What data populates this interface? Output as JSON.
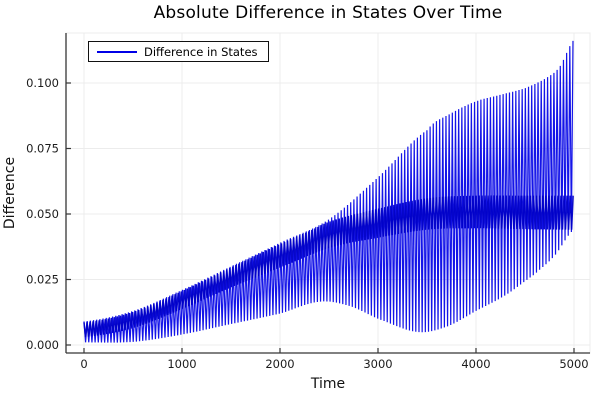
{
  "title": "Absolute Difference in States Over Time",
  "legend": {
    "label": "Difference in States",
    "position": "top-left"
  },
  "axes": {
    "x_label": "Time",
    "y_label": "Difference",
    "x_tick_labels": [
      "0",
      "1000",
      "2000",
      "3000",
      "4000",
      "5000"
    ],
    "y_tick_labels": [
      "0.000",
      "0.025",
      "0.050",
      "0.075",
      "0.100"
    ]
  },
  "colors": {
    "series_blue": "#1414e8",
    "series_core_blue": "#0000c8",
    "legend_sample_blue": "#0000e6",
    "grid": "#ececec",
    "spine": "#363636",
    "tick_text": "#1c1c1c",
    "background": "#ffffff"
  },
  "chart_data": {
    "type": "line",
    "title": "Absolute Difference in States Over Time",
    "xlabel": "Time",
    "ylabel": "Difference",
    "xlim": [
      0,
      5000
    ],
    "ylim": [
      0.0,
      0.118
    ],
    "x_ticks": [
      0,
      1000,
      2000,
      3000,
      4000,
      5000
    ],
    "y_ticks": [
      0.0,
      0.025,
      0.05,
      0.075,
      0.1
    ],
    "grid": true,
    "legend_position": "top-left",
    "series": [
      {
        "name": "Difference in States",
        "color": "#1414e8",
        "waveform": "fast oscillation filling the region between slowly varying envelopes (absolute difference of two drifting oscillatory states)",
        "oscillation_period_time_units": 33,
        "start_value": 0.008,
        "end_peak_value": 0.1165,
        "upper_envelope": [
          [
            0,
            0.009
          ],
          [
            500,
            0.013
          ],
          [
            1000,
            0.021
          ],
          [
            1500,
            0.03
          ],
          [
            2000,
            0.039
          ],
          [
            2500,
            0.048
          ],
          [
            3000,
            0.064
          ],
          [
            3500,
            0.082
          ],
          [
            3750,
            0.0885
          ],
          [
            4000,
            0.093
          ],
          [
            4250,
            0.0955
          ],
          [
            4500,
            0.098
          ],
          [
            4700,
            0.1015
          ],
          [
            4850,
            0.106
          ],
          [
            5000,
            0.1165
          ]
        ],
        "lower_envelope": [
          [
            0,
            0.001
          ],
          [
            500,
            0.0012
          ],
          [
            1000,
            0.004
          ],
          [
            1500,
            0.008
          ],
          [
            2000,
            0.012
          ],
          [
            2400,
            0.0165
          ],
          [
            2700,
            0.015
          ],
          [
            3000,
            0.01
          ],
          [
            3400,
            0.005
          ],
          [
            3700,
            0.007
          ],
          [
            4000,
            0.013
          ],
          [
            4300,
            0.019
          ],
          [
            4600,
            0.027
          ],
          [
            4800,
            0.034
          ],
          [
            5000,
            0.044
          ]
        ],
        "dense_band_top": [
          [
            0,
            0.009
          ],
          [
            500,
            0.013
          ],
          [
            1000,
            0.021
          ],
          [
            1500,
            0.03
          ],
          [
            2000,
            0.0385
          ],
          [
            2500,
            0.047
          ],
          [
            3000,
            0.052
          ],
          [
            3500,
            0.056
          ],
          [
            4000,
            0.057
          ],
          [
            4500,
            0.057
          ],
          [
            5000,
            0.057
          ]
        ],
        "dense_band_thickness": [
          [
            0,
            0.006
          ],
          [
            1500,
            0.008
          ],
          [
            2500,
            0.01
          ],
          [
            3500,
            0.012
          ],
          [
            5000,
            0.013
          ]
        ]
      }
    ]
  }
}
